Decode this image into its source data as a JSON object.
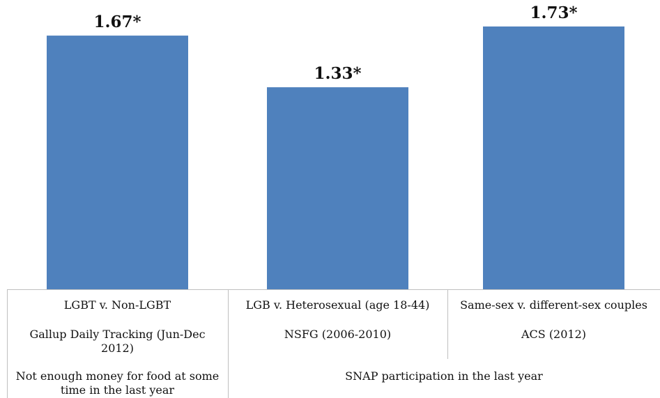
{
  "chart_data": {
    "type": "bar",
    "categories": [
      "LGBT v. Non-LGBT",
      "LGB v. Heterosexual (age 18-44)",
      "Same-sex v. different-sex couples"
    ],
    "sources": [
      "Gallup Daily Tracking (Jun-Dec 2012)",
      "NSFG (2006-2010)",
      "ACS (2012)"
    ],
    "groups": [
      {
        "label": "Not enough money for food at some time in the last year",
        "span": 1
      },
      {
        "label": "SNAP participation in the last year",
        "span": 2
      }
    ],
    "values": [
      1.67,
      1.33,
      1.73
    ],
    "value_labels": [
      "1.67*",
      "1.33*",
      "1.73*"
    ],
    "color": "#4f81bd"
  }
}
